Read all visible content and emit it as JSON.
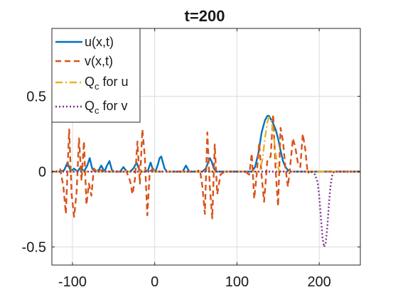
{
  "chart_data": {
    "type": "line",
    "title": "t=200",
    "xlabel": "",
    "ylabel": "",
    "xlim": [
      -125,
      250
    ],
    "ylim": [
      -0.62,
      0.95
    ],
    "xticks": [
      -100,
      0,
      100,
      200
    ],
    "xtick_labels": [
      "-100",
      "0",
      "100",
      "200"
    ],
    "yticks": [
      -0.5,
      0,
      0.5
    ],
    "ytick_labels": [
      "-0.5",
      "0",
      "0.5"
    ],
    "grid": true,
    "legend_position": "top-left",
    "series": [
      {
        "name": "u(x,t)",
        "color": "#0072BD",
        "style": "solid",
        "x": [
          -125,
          -115,
          -110,
          -106,
          -102,
          -98,
          -94,
          -90,
          -86,
          -82,
          -79,
          -76,
          -72,
          -68,
          -65,
          -61,
          -58,
          -55,
          -52,
          -49,
          -46,
          -42,
          -38,
          -34,
          -30,
          -26,
          -22,
          -18,
          -14,
          -11,
          -8,
          -5,
          -2,
          1,
          4,
          6,
          8,
          10,
          12,
          15,
          18,
          22,
          26,
          30,
          34,
          38,
          42,
          46,
          50,
          54,
          58,
          62,
          65,
          67,
          69,
          72,
          75,
          80,
          90,
          100,
          110,
          118,
          122,
          126,
          130,
          134,
          137,
          139,
          141,
          144,
          147,
          150,
          153,
          156,
          159,
          162,
          166,
          170,
          180,
          200,
          230,
          250
        ],
        "y": [
          0,
          0,
          0.01,
          0.06,
          0,
          0.02,
          0,
          0.03,
          0,
          0.04,
          0.09,
          0.02,
          0,
          0.01,
          0.04,
          0,
          0.04,
          0.07,
          0.01,
          0,
          0,
          0,
          0.03,
          0,
          0,
          0.02,
          0.06,
          0,
          0,
          0,
          0.01,
          0.06,
          0.01,
          0,
          0.05,
          0.09,
          0.1,
          0.06,
          0.02,
          0,
          0,
          0,
          0,
          0,
          0,
          0.04,
          0,
          0,
          0,
          0,
          0,
          0.02,
          0.06,
          0.09,
          0.07,
          0.02,
          0,
          0,
          0,
          0,
          0,
          0,
          0.03,
          0.12,
          0.26,
          0.34,
          0.37,
          0.37,
          0.35,
          0.32,
          0.28,
          0.22,
          0.14,
          0.07,
          0.03,
          0.01,
          0,
          0,
          0,
          0,
          0,
          0
        ]
      },
      {
        "name": "v(x,t)",
        "color": "#D95319",
        "style": "dashed",
        "x": [
          -125,
          -120,
          -115,
          -111,
          -108,
          -104,
          -101,
          -98,
          -95,
          -92,
          -89,
          -86,
          -83,
          -80,
          -77,
          -74,
          -70,
          -65,
          -60,
          -50,
          -40,
          -35,
          -30,
          -27,
          -24,
          -21,
          -18,
          -15,
          -12,
          -9,
          -6,
          -2,
          2,
          10,
          20,
          30,
          40,
          50,
          55,
          58,
          61,
          64,
          67,
          70,
          73,
          76,
          80,
          85,
          90,
          100,
          110,
          115,
          118,
          121,
          124,
          127,
          130,
          133,
          137,
          141,
          144,
          147,
          150,
          153,
          156,
          159,
          162,
          165,
          168,
          171,
          174,
          177,
          180,
          183,
          186,
          189,
          192,
          195,
          198,
          205,
          230,
          250
        ],
        "y": [
          0,
          0,
          0.02,
          -0.1,
          -0.28,
          0.28,
          -0.15,
          -0.3,
          -0.14,
          0.22,
          -0.06,
          0.2,
          -0.22,
          -0.08,
          -0.16,
          0.02,
          0,
          0.01,
          0,
          0,
          0,
          0.01,
          -0.06,
          -0.15,
          -0.05,
          0.2,
          -0.08,
          0.28,
          0.1,
          -0.29,
          0,
          0.02,
          0,
          0,
          0,
          0,
          0,
          0,
          0.01,
          -0.1,
          -0.28,
          0.26,
          -0.1,
          -0.31,
          0.18,
          -0.15,
          -0.02,
          0,
          0,
          0,
          0,
          -0.02,
          0.12,
          -0.18,
          -0.02,
          0.19,
          -0.03,
          -0.2,
          0.08,
          0.1,
          0.38,
          0.01,
          -0.23,
          0.29,
          0.2,
          0.02,
          -0.1,
          0.05,
          0.22,
          0.16,
          0.06,
          0.03,
          0.25,
          0.15,
          -0.01,
          0,
          0,
          0,
          0,
          0,
          0,
          0
        ]
      },
      {
        "name": "Q_c for u",
        "color": "#EDB120",
        "style": "dashdot",
        "x": [
          -125,
          125,
          128,
          131,
          134,
          137,
          139,
          141,
          143,
          145,
          147,
          149,
          151,
          153,
          170,
          250
        ],
        "y": [
          0,
          0,
          0.01,
          0.08,
          0.22,
          0.33,
          0.36,
          0.35,
          0.3,
          0.22,
          0.12,
          0.05,
          0.01,
          0,
          0,
          0
        ]
      },
      {
        "name": "Q_c for v",
        "color": "#7E2F8E",
        "style": "dotted",
        "x": [
          -125,
          190,
          195,
          198,
          200,
          202,
          204,
          206,
          208,
          210,
          212,
          214,
          216,
          218,
          222,
          250
        ],
        "y": [
          0,
          0,
          -0.02,
          -0.07,
          -0.16,
          -0.3,
          -0.44,
          -0.5,
          -0.47,
          -0.36,
          -0.2,
          -0.08,
          -0.02,
          0,
          0,
          0
        ]
      }
    ],
    "legend": [
      {
        "label": "u(x,t)",
        "sub": ""
      },
      {
        "label": "v(x,t)",
        "sub": ""
      },
      {
        "label": "Q",
        "sub": "c",
        "suffix": " for u"
      },
      {
        "label": "Q",
        "sub": "c",
        "suffix": " for v"
      }
    ]
  }
}
